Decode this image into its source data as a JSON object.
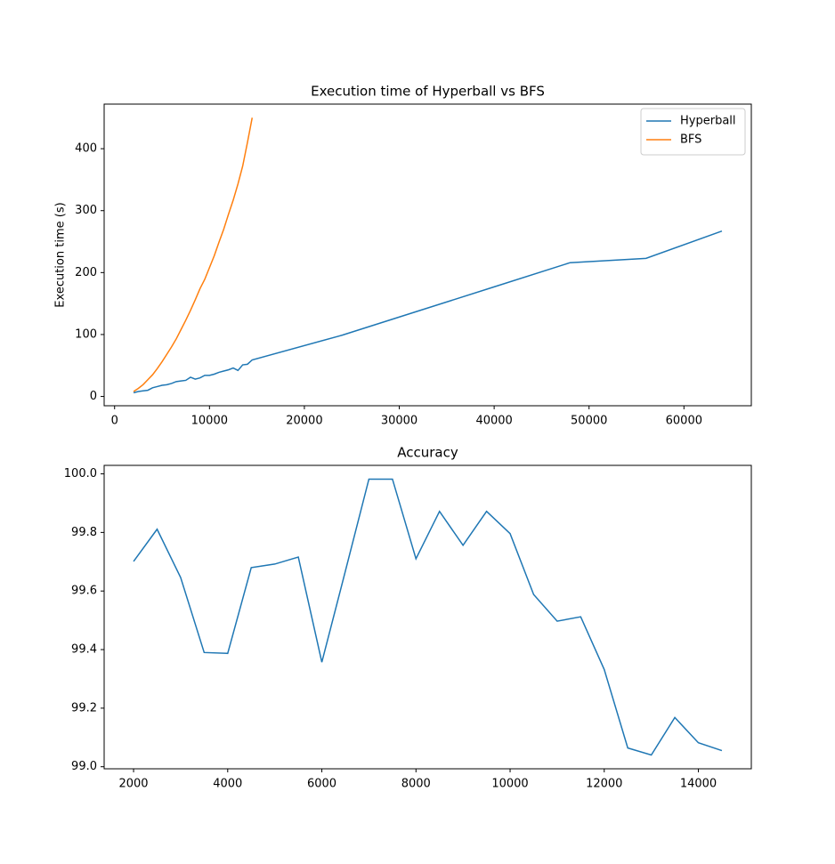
{
  "chart_data": [
    {
      "type": "line",
      "title": "Execution time of Hyperball vs BFS",
      "ylabel": "Execution time (s)",
      "legend": "upper right",
      "xlim": [
        -1100,
        67100
      ],
      "xticks": [
        0,
        10000,
        20000,
        30000,
        40000,
        50000,
        60000
      ],
      "ylim": [
        -15,
        472
      ],
      "yticks": [
        0,
        100,
        200,
        300,
        400
      ],
      "series": [
        {
          "name": "Hyperball",
          "color": "#1f77b4",
          "x": [
            2000,
            2500,
            3000,
            3500,
            4000,
            4500,
            5000,
            5500,
            6000,
            6500,
            7000,
            7500,
            8000,
            8500,
            9000,
            9500,
            10000,
            10500,
            11000,
            11500,
            12000,
            12500,
            13000,
            13500,
            14000,
            14500,
            24000,
            32000,
            40000,
            48000,
            56000,
            64000
          ],
          "values": [
            6,
            8,
            9,
            10,
            14,
            16,
            18,
            19,
            21,
            24,
            25,
            26,
            31,
            28,
            30,
            34,
            34,
            36,
            39,
            41,
            43,
            46,
            42,
            51,
            52,
            59,
            99,
            138,
            177,
            216,
            223,
            267
          ]
        },
        {
          "name": "BFS",
          "color": "#ff7f0e",
          "x": [
            2000,
            2500,
            3000,
            3500,
            4000,
            4500,
            5000,
            5500,
            6000,
            6500,
            7000,
            7500,
            8000,
            8500,
            9000,
            9500,
            10000,
            10500,
            11000,
            11500,
            12000,
            12500,
            13000,
            13500,
            14000,
            14500
          ],
          "values": [
            8,
            13,
            19,
            27,
            35,
            45,
            56,
            68,
            80,
            93,
            108,
            123,
            139,
            156,
            174,
            189,
            208,
            227,
            249,
            270,
            294,
            317,
            343,
            372,
            410,
            450
          ]
        }
      ]
    },
    {
      "type": "line",
      "title": "Accuracy",
      "color": "#1f77b4",
      "xlim": [
        1375,
        15125
      ],
      "xticks": [
        2000,
        4000,
        6000,
        8000,
        10000,
        12000,
        14000
      ],
      "ylim": [
        98.993,
        100.029
      ],
      "yticks": [
        {
          "value": 99,
          "label": "99.0"
        },
        99.2,
        99.4,
        99.6,
        99.8,
        {
          "value": 100,
          "label": "100.0"
        }
      ],
      "x": [
        2000,
        2500,
        3000,
        3500,
        4000,
        4500,
        5000,
        5500,
        6000,
        6500,
        7000,
        7500,
        8000,
        8500,
        9000,
        9500,
        10000,
        10500,
        11000,
        11500,
        12000,
        12500,
        13000,
        13500,
        14000,
        14500
      ],
      "values": [
        99.701,
        99.811,
        99.646,
        99.39,
        99.387,
        99.68,
        99.692,
        99.716,
        99.357,
        99.668,
        99.982,
        99.982,
        99.71,
        99.872,
        99.756,
        99.872,
        99.796,
        99.588,
        99.497,
        99.512,
        99.332,
        99.064,
        99.04,
        99.168,
        99.082,
        99.055
      ]
    }
  ]
}
